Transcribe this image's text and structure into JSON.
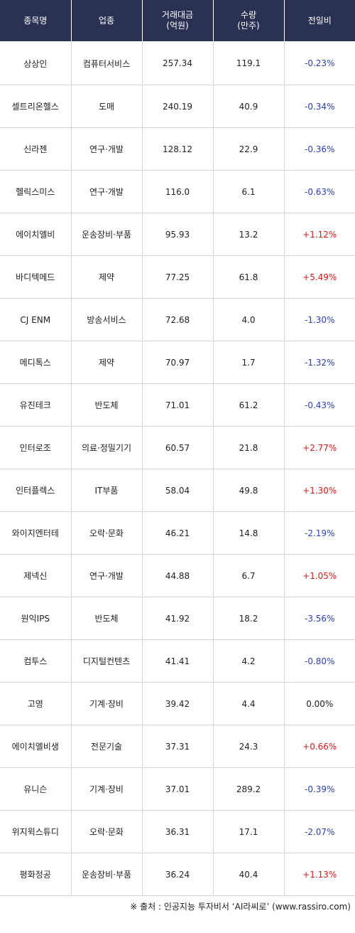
{
  "header": {
    "col_name": "종목명",
    "col_sector": "업종",
    "col_amount_l1": "거래대금",
    "col_amount_l2": "(억원)",
    "col_volume_l1": "수량",
    "col_volume_l2": "(만주)",
    "col_change": "전일비"
  },
  "rows": [
    {
      "name": "상상인",
      "sector": "컴퓨터서비스",
      "amount": "257.34",
      "volume": "119.1",
      "change": "-0.23%",
      "dir": "down"
    },
    {
      "name": "셀트리온헬스",
      "sector": "도매",
      "amount": "240.19",
      "volume": "40.9",
      "change": "-0.34%",
      "dir": "down"
    },
    {
      "name": "신라젠",
      "sector": "연구·개발",
      "amount": "128.12",
      "volume": "22.9",
      "change": "-0.36%",
      "dir": "down"
    },
    {
      "name": "헬릭스미스",
      "sector": "연구·개발",
      "amount": "116.0",
      "volume": "6.1",
      "change": "-0.63%",
      "dir": "down"
    },
    {
      "name": "에이치엘비",
      "sector": "운송장비·부품",
      "amount": "95.93",
      "volume": "13.2",
      "change": "+1.12%",
      "dir": "up"
    },
    {
      "name": "바디텍메드",
      "sector": "제약",
      "amount": "77.25",
      "volume": "61.8",
      "change": "+5.49%",
      "dir": "up"
    },
    {
      "name": "CJ ENM",
      "sector": "방송서비스",
      "amount": "72.68",
      "volume": "4.0",
      "change": "-1.30%",
      "dir": "down"
    },
    {
      "name": "메디톡스",
      "sector": "제약",
      "amount": "70.97",
      "volume": "1.7",
      "change": "-1.32%",
      "dir": "down"
    },
    {
      "name": "유진테크",
      "sector": "반도체",
      "amount": "71.01",
      "volume": "61.2",
      "change": "-0.43%",
      "dir": "down"
    },
    {
      "name": "인터로조",
      "sector": "의료·정밀기기",
      "amount": "60.57",
      "volume": "21.8",
      "change": "+2.77%",
      "dir": "up"
    },
    {
      "name": "인터플렉스",
      "sector": "IT부품",
      "amount": "58.04",
      "volume": "49.8",
      "change": "+1.30%",
      "dir": "up"
    },
    {
      "name": "와이지엔터테",
      "sector": "오락·문화",
      "amount": "46.21",
      "volume": "14.8",
      "change": "-2.19%",
      "dir": "down"
    },
    {
      "name": "제넥신",
      "sector": "연구·개발",
      "amount": "44.88",
      "volume": "6.7",
      "change": "+1.05%",
      "dir": "up"
    },
    {
      "name": "원익IPS",
      "sector": "반도체",
      "amount": "41.92",
      "volume": "18.2",
      "change": "-3.56%",
      "dir": "down"
    },
    {
      "name": "컴투스",
      "sector": "디지털컨텐츠",
      "amount": "41.41",
      "volume": "4.2",
      "change": "-0.80%",
      "dir": "down"
    },
    {
      "name": "고영",
      "sector": "기계·장비",
      "amount": "39.42",
      "volume": "4.4",
      "change": "0.00%",
      "dir": "flat"
    },
    {
      "name": "에이치엘비생",
      "sector": "전문기술",
      "amount": "37.31",
      "volume": "24.3",
      "change": "+0.66%",
      "dir": "up"
    },
    {
      "name": "유니슨",
      "sector": "기계·장비",
      "amount": "37.01",
      "volume": "289.2",
      "change": "-0.39%",
      "dir": "down"
    },
    {
      "name": "위지윅스튜디",
      "sector": "오락·문화",
      "amount": "36.31",
      "volume": "17.1",
      "change": "-2.07%",
      "dir": "down"
    },
    {
      "name": "평화정공",
      "sector": "운송장비·부품",
      "amount": "36.24",
      "volume": "40.4",
      "change": "+1.13%",
      "dir": "up"
    }
  ],
  "colors": {
    "header_bg": "#2b3152",
    "up": "#d21c1c",
    "down": "#2a3fb8"
  },
  "footer": "※ 출처 : 인공지능 투자비서 ‘AI라씨로’ (www.rassiro.com)"
}
